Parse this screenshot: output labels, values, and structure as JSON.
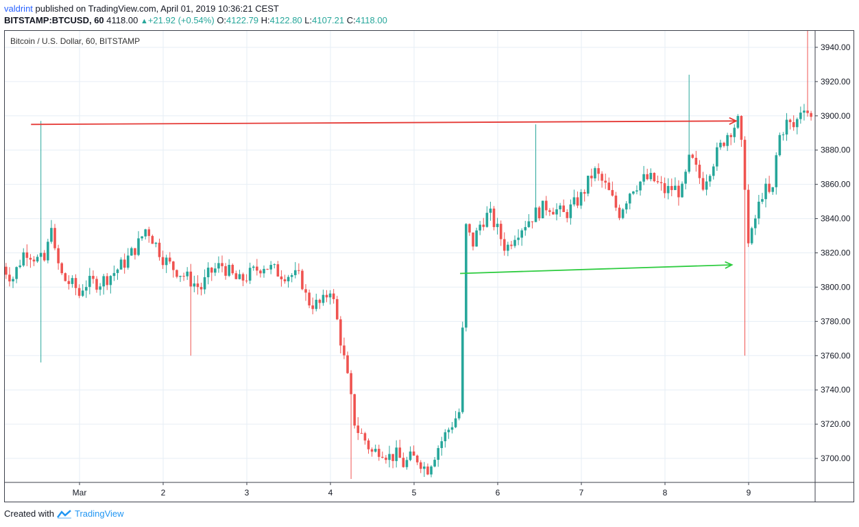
{
  "header": {
    "author": "valdrint",
    "published_text": "published on TradingView.com, April 01, 2019 10:36:21 CEST",
    "symbol": "BITSTAMP:BTCUSD, 60",
    "last_price": "4118.00",
    "change": "+21.92 (+0.54%)",
    "open_label": "O:",
    "open": "4122.79",
    "high_label": "H:",
    "high": "4122.80",
    "low_label": "L:",
    "low": "4107.21",
    "close_label": "C:",
    "close": "4118.00"
  },
  "footer": {
    "created_with": "Created with",
    "brand": "TradingView"
  },
  "colors": {
    "up": "#26a69a",
    "down": "#ef5350",
    "grid": "#e6eef5",
    "resistance_arrow": "#e53935",
    "support_arrow": "#2ecc40"
  },
  "chart_data": {
    "type": "candlestick",
    "title": "Bitcoin / U.S. Dollar, 60, BITSTAMP",
    "x_tick_labels": [
      "Mar",
      "2",
      "3",
      "4",
      "5",
      "6",
      "7",
      "8",
      "9"
    ],
    "y_tick_labels": [
      "3700.00",
      "3720.00",
      "3740.00",
      "3760.00",
      "3780.00",
      "3800.00",
      "3820.00",
      "3840.00",
      "3860.00",
      "3880.00",
      "3900.00",
      "3920.00",
      "3940.00"
    ],
    "ylim": [
      3686,
      3950
    ],
    "x_range_days": [
      0.08,
      9.75
    ],
    "grid": true,
    "close_path": [
      [
        0.08,
        3812
      ],
      [
        0.2,
        3805
      ],
      [
        0.35,
        3822
      ],
      [
        0.5,
        3816
      ],
      [
        0.6,
        3815
      ],
      [
        0.66,
        3840
      ],
      [
        0.7,
        3820
      ],
      [
        0.8,
        3805
      ],
      [
        0.95,
        3800
      ],
      [
        1.0,
        3795
      ],
      [
        1.05,
        3802
      ],
      [
        1.25,
        3803
      ],
      [
        1.4,
        3808
      ],
      [
        1.55,
        3815
      ],
      [
        1.7,
        3825
      ],
      [
        1.8,
        3835
      ],
      [
        1.9,
        3826
      ],
      [
        2.0,
        3817
      ],
      [
        2.1,
        3812
      ],
      [
        2.3,
        3805
      ],
      [
        2.45,
        3799
      ],
      [
        2.55,
        3808
      ],
      [
        2.7,
        3813
      ],
      [
        2.9,
        3803
      ],
      [
        3.05,
        3808
      ],
      [
        3.2,
        3813
      ],
      [
        3.4,
        3808
      ],
      [
        3.55,
        3807
      ],
      [
        3.65,
        3805
      ],
      [
        3.72,
        3792
      ],
      [
        3.8,
        3790
      ],
      [
        3.9,
        3790
      ],
      [
        4.0,
        3800
      ],
      [
        4.05,
        3788
      ],
      [
        4.1,
        3775
      ],
      [
        4.2,
        3748
      ],
      [
        4.3,
        3718
      ],
      [
        4.4,
        3712
      ],
      [
        4.5,
        3703
      ],
      [
        4.6,
        3706
      ],
      [
        4.7,
        3701
      ],
      [
        4.8,
        3702
      ],
      [
        4.88,
        3696
      ],
      [
        4.95,
        3700
      ],
      [
        5.05,
        3700
      ],
      [
        5.15,
        3693
      ],
      [
        5.3,
        3708
      ],
      [
        5.45,
        3720
      ],
      [
        5.55,
        3728
      ],
      [
        5.62,
        3835
      ],
      [
        5.7,
        3825
      ],
      [
        5.8,
        3838
      ],
      [
        5.9,
        3843
      ],
      [
        6.0,
        3833
      ],
      [
        6.1,
        3822
      ],
      [
        6.2,
        3831
      ],
      [
        6.3,
        3836
      ],
      [
        6.45,
        3843
      ],
      [
        6.6,
        3848
      ],
      [
        6.8,
        3842
      ],
      [
        7.0,
        3853
      ],
      [
        7.15,
        3868
      ],
      [
        7.3,
        3858
      ],
      [
        7.45,
        3843
      ],
      [
        7.6,
        3858
      ],
      [
        7.75,
        3863
      ],
      [
        7.85,
        3863
      ],
      [
        8.0,
        3856
      ],
      [
        8.1,
        3858
      ],
      [
        8.2,
        3855
      ],
      [
        8.3,
        3876
      ],
      [
        8.45,
        3860
      ],
      [
        8.6,
        3876
      ],
      [
        8.75,
        3890
      ],
      [
        8.88,
        3897
      ],
      [
        8.95,
        3865
      ],
      [
        9.0,
        3822
      ],
      [
        9.08,
        3840
      ],
      [
        9.18,
        3858
      ],
      [
        9.28,
        3852
      ],
      [
        9.35,
        3886
      ],
      [
        9.45,
        3896
      ],
      [
        9.55,
        3893
      ],
      [
        9.65,
        3908
      ],
      [
        9.75,
        3898
      ]
    ],
    "low_wick_spikes": [
      [
        0.55,
        3756
      ],
      [
        2.35,
        3760
      ],
      [
        4.25,
        3688
      ],
      [
        8.95,
        3760
      ]
    ],
    "high_wick_spikes": [
      [
        0.55,
        3897
      ],
      [
        6.45,
        3895
      ],
      [
        8.3,
        3924
      ],
      [
        9.7,
        3950
      ]
    ],
    "annotations": [
      {
        "name": "resistance-arrow",
        "x1": 0.42,
        "y1": 3895,
        "x2": 8.85,
        "y2": 3897,
        "color": "#e53935"
      },
      {
        "name": "support-arrow",
        "x1": 5.55,
        "y1": 3808,
        "x2": 8.8,
        "y2": 3813,
        "color": "#2ecc40"
      }
    ]
  }
}
